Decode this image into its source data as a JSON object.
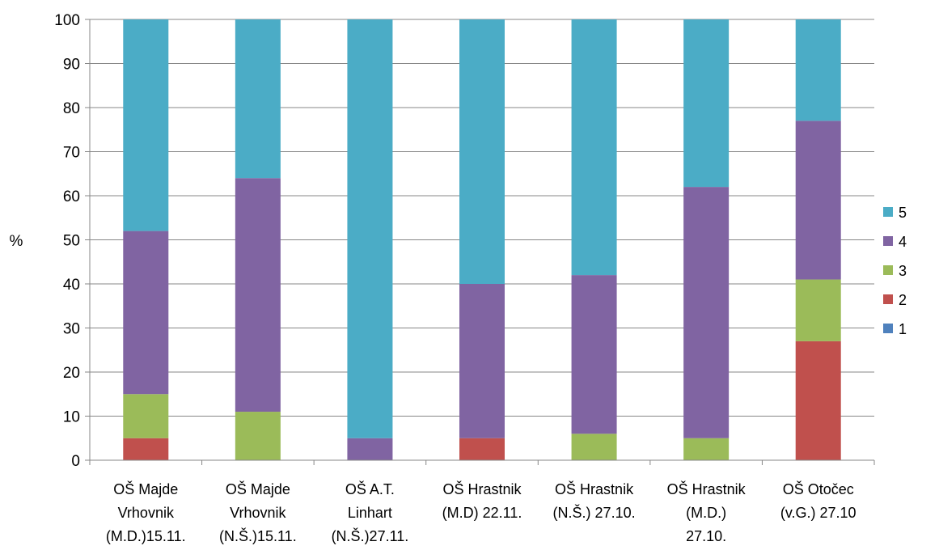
{
  "chart_data": {
    "type": "bar",
    "stacked": true,
    "ylabel": "%",
    "ylim": [
      0,
      100
    ],
    "yticks": [
      "0",
      "10",
      "20",
      "30",
      "40",
      "50",
      "60",
      "70",
      "80",
      "90",
      "100"
    ],
    "grid": true,
    "legend_position": "right",
    "categories": [
      [
        "OŠ  Majde",
        "Vrhovnik",
        "(M.D.)15.11."
      ],
      [
        "OŠ  Majde",
        "Vrhovnik",
        "(N.Š.)15.11."
      ],
      [
        "OŠ  A.T.",
        "Linhart",
        "(N.Š.)27.11."
      ],
      [
        "OŠ Hrastnik",
        "(M.D) 22.11."
      ],
      [
        "OŠ Hrastnik",
        "(N.Š.) 27.10."
      ],
      [
        "OŠ Hrastnik",
        "(M.D.)",
        "27.10."
      ],
      [
        "OŠ Otočec",
        "(v.G.) 27.10"
      ]
    ],
    "series": [
      {
        "name": "1",
        "color": "#4F81BD",
        "values": [
          0,
          0,
          0,
          0,
          0,
          0,
          0
        ]
      },
      {
        "name": "2",
        "color": "#C0504D",
        "values": [
          5,
          0,
          0,
          5,
          0,
          0,
          27
        ]
      },
      {
        "name": "3",
        "color": "#9BBB59",
        "values": [
          10,
          11,
          0,
          0,
          6,
          5,
          14
        ]
      },
      {
        "name": "4",
        "color": "#8064A2",
        "values": [
          37,
          53,
          5,
          35,
          36,
          57,
          36
        ]
      },
      {
        "name": "5",
        "color": "#4BACC6",
        "values": [
          48,
          36,
          95,
          60,
          58,
          38,
          23
        ]
      }
    ],
    "legend_order": [
      "5",
      "4",
      "3",
      "2",
      "1"
    ]
  }
}
